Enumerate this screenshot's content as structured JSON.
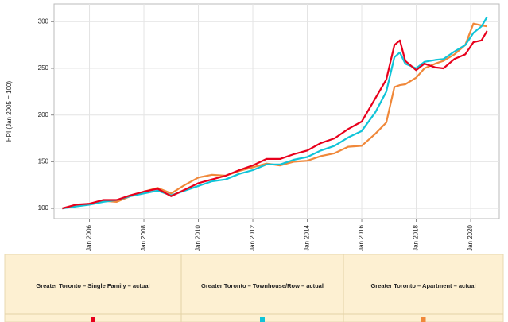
{
  "chart_data": {
    "type": "line",
    "ylabel": "HPI (Jan 2005 = 100)",
    "x": [
      2005.0,
      2005.5,
      2006.0,
      2006.5,
      2007.0,
      2007.5,
      2008.0,
      2008.5,
      2009.0,
      2009.5,
      2010.0,
      2010.5,
      2011.0,
      2011.5,
      2012.0,
      2012.5,
      2013.0,
      2013.5,
      2014.0,
      2014.5,
      2015.0,
      2015.5,
      2016.0,
      2016.5,
      2016.9,
      2017.2,
      2017.4,
      2017.6,
      2018.0,
      2018.3,
      2018.7,
      2019.0,
      2019.4,
      2019.8,
      2020.1,
      2020.4,
      2020.6
    ],
    "series": [
      {
        "name": "Greater Toronto – Single Family – actual",
        "color": "#e8001c",
        "values": [
          100,
          104,
          105,
          109,
          109,
          114,
          118,
          121,
          113,
          120,
          127,
          131,
          135,
          141,
          146,
          153,
          153,
          158,
          162,
          170,
          175,
          185,
          193,
          218,
          238,
          275,
          280,
          258,
          248,
          255,
          251,
          250,
          260,
          265,
          278,
          280,
          290
        ]
      },
      {
        "name": "Greater Toronto – Townhouse/Row – actual",
        "color": "#10c4d8",
        "values": [
          100,
          102,
          104,
          107,
          109,
          113,
          116,
          119,
          114,
          119,
          124,
          129,
          131,
          137,
          141,
          147,
          147,
          152,
          155,
          162,
          167,
          176,
          183,
          203,
          225,
          262,
          267,
          255,
          250,
          257,
          259,
          260,
          268,
          275,
          288,
          295,
          305
        ]
      },
      {
        "name": "Greater Toronto – Apartment – actual",
        "color": "#f0883a",
        "values": [
          100,
          103,
          105,
          108,
          107,
          113,
          118,
          122,
          116,
          125,
          133,
          136,
          135,
          140,
          144,
          148,
          146,
          150,
          151,
          156,
          159,
          166,
          167,
          180,
          192,
          230,
          232,
          233,
          240,
          250,
          255,
          258,
          265,
          275,
          298,
          296,
          295
        ]
      }
    ],
    "xlim": [
      2004.7,
      2021.05
    ],
    "xticks": [
      {
        "value": 2006,
        "label": "Jan 2006"
      },
      {
        "value": 2008,
        "label": "Jan 2008"
      },
      {
        "value": 2010,
        "label": "Jan 2010"
      },
      {
        "value": 2012,
        "label": "Jan 2012"
      },
      {
        "value": 2014,
        "label": "Jan 2014"
      },
      {
        "value": 2016,
        "label": "Jan 2016"
      },
      {
        "value": 2018,
        "label": "Jan 2018"
      },
      {
        "value": 2020,
        "label": "Jan 2020"
      }
    ],
    "ylim": [
      89,
      319
    ],
    "yticks": [
      100,
      150,
      200,
      250,
      300
    ],
    "grid": true
  }
}
